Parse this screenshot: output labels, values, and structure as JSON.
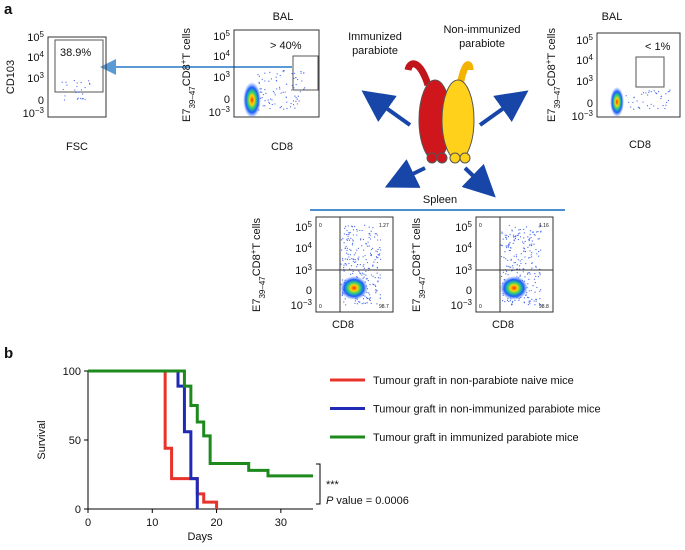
{
  "panel_a": {
    "label": "a",
    "flow_ticks": [
      {
        "base": "10",
        "exp": "5"
      },
      {
        "base": "10",
        "exp": "4"
      },
      {
        "base": "10",
        "exp": "3"
      },
      "0",
      {
        "base": "10",
        "exp": "−3"
      }
    ],
    "ylabel_parts": {
      "main": "E7",
      "sub": "39–47",
      "mid": "CD8",
      "sup": "+",
      "end": "T cells"
    },
    "plot1": {
      "ylabel": "CD103",
      "xlabel": "FSC",
      "gate": "38.9%"
    },
    "plot2": {
      "title": "BAL",
      "gate": "> 40%",
      "xlabel": "CD8"
    },
    "plot3": {
      "title": "BAL",
      "gate": "< 1%",
      "xlabel": "CD8"
    },
    "immunized": [
      "Immunized",
      "parabiote"
    ],
    "non_immunized": [
      "Non-immunized",
      "parabiote"
    ],
    "spleen": {
      "title": "Spleen",
      "plots": [
        {
          "q": [
            "0",
            "1.27",
            "0",
            "98.7"
          ],
          "xlabel": "CD8"
        },
        {
          "q": [
            "0",
            "1.16",
            "0",
            "98.8"
          ],
          "xlabel": "CD8"
        }
      ]
    }
  },
  "chart_data": {
    "type": "step",
    "label": "b",
    "ylabel": "Survival",
    "xlabel": "Days",
    "xlim": [
      0,
      35
    ],
    "ylim": [
      0,
      100
    ],
    "xticks": [
      0,
      10,
      20,
      30
    ],
    "yticks": [
      0,
      50,
      100
    ],
    "series": [
      {
        "name": "Tumour graft in non-parabiote naive mice",
        "color": "#e8332a",
        "x": [
          0,
          12,
          13,
          17,
          18,
          20
        ],
        "values": [
          100,
          44,
          22,
          11,
          5,
          0
        ]
      },
      {
        "name": "Tumour graft in non-immunized parabiote mice",
        "color": "#1f2bb5",
        "x": [
          0,
          14,
          15,
          16,
          17
        ],
        "values": [
          100,
          89,
          56,
          22,
          0
        ]
      },
      {
        "name": "Tumour graft in immunized parabiote mice",
        "color": "#1e8a1e",
        "x": [
          0,
          15,
          16,
          17,
          18,
          19,
          25,
          28,
          35
        ],
        "values": [
          100,
          89,
          75,
          63,
          53,
          33,
          28,
          24,
          24
        ]
      }
    ],
    "sig": "***",
    "p_label": "P",
    "p_text": "value = 0.0006"
  }
}
